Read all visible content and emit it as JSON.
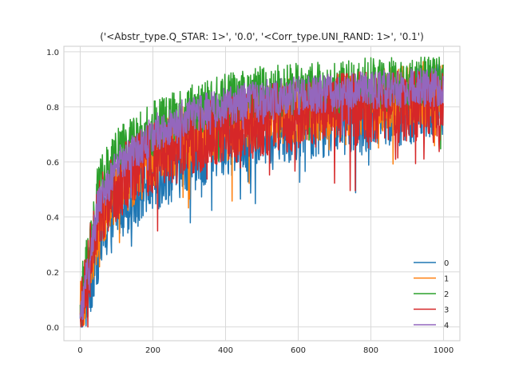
{
  "chart_data": {
    "type": "line",
    "title": "('<Abstr_type.Q_STAR: 1>', '0.0', '<Corr_type.UNI_RAND: 1>', '0.1')",
    "xlabel": "",
    "ylabel": "",
    "xlim": [
      -45,
      1045
    ],
    "ylim": [
      -0.05,
      1.02
    ],
    "xticks": [
      0,
      200,
      400,
      600,
      800,
      1000
    ],
    "yticks": [
      0.0,
      0.2,
      0.4,
      0.6,
      0.8,
      1.0
    ],
    "xtick_labels": [
      "0",
      "200",
      "400",
      "600",
      "800",
      "1000"
    ],
    "ytick_labels": [
      "0.0",
      "0.2",
      "0.4",
      "0.6",
      "0.8",
      "1.0"
    ],
    "grid": true,
    "legend_position": "bottom-right",
    "n_points": 1000,
    "series": [
      {
        "name": "0",
        "color": "#1f77b4",
        "envelope_x": [
          0,
          50,
          100,
          200,
          300,
          400,
          500,
          600,
          700,
          800,
          900,
          1000
        ],
        "start": 0.03,
        "mean": [
          0.03,
          0.3,
          0.45,
          0.55,
          0.63,
          0.68,
          0.72,
          0.74,
          0.76,
          0.78,
          0.8,
          0.82
        ],
        "spread": 0.14
      },
      {
        "name": "1",
        "color": "#ff7f0e",
        "envelope_x": [
          0,
          50,
          100,
          200,
          300,
          400,
          500,
          600,
          700,
          800,
          900,
          1000
        ],
        "start": 0.05,
        "mean": [
          0.05,
          0.38,
          0.5,
          0.62,
          0.7,
          0.74,
          0.77,
          0.79,
          0.8,
          0.82,
          0.84,
          0.85
        ],
        "spread": 0.12
      },
      {
        "name": "2",
        "color": "#2ca02c",
        "envelope_x": [
          0,
          50,
          100,
          200,
          300,
          400,
          500,
          600,
          700,
          800,
          900,
          1000
        ],
        "start": 0.08,
        "mean": [
          0.08,
          0.5,
          0.62,
          0.72,
          0.78,
          0.82,
          0.85,
          0.86,
          0.87,
          0.88,
          0.88,
          0.89
        ],
        "spread": 0.1
      },
      {
        "name": "3",
        "color": "#d62728",
        "envelope_x": [
          0,
          50,
          100,
          200,
          300,
          400,
          500,
          600,
          700,
          800,
          900,
          1000
        ],
        "start": 0.05,
        "mean": [
          0.05,
          0.42,
          0.52,
          0.62,
          0.68,
          0.72,
          0.75,
          0.77,
          0.79,
          0.8,
          0.8,
          0.8
        ],
        "spread": 0.13
      },
      {
        "name": "4",
        "color": "#9467bd",
        "envelope_x": [
          0,
          50,
          100,
          200,
          300,
          400,
          500,
          600,
          700,
          800,
          900,
          1000
        ],
        "start": 0.03,
        "mean": [
          0.03,
          0.45,
          0.58,
          0.7,
          0.77,
          0.8,
          0.83,
          0.84,
          0.85,
          0.86,
          0.87,
          0.87
        ],
        "spread": 0.07
      }
    ]
  }
}
